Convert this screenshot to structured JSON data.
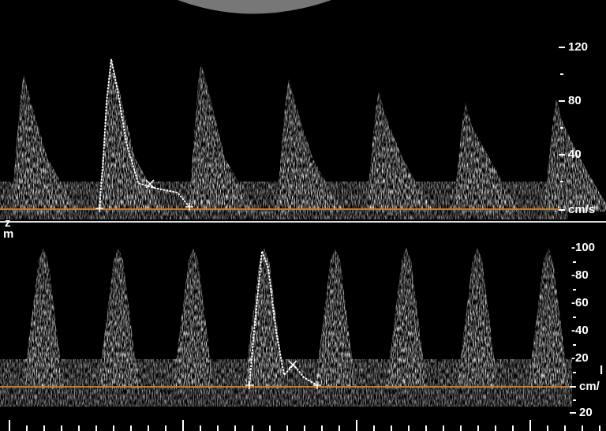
{
  "top_panel": {
    "scale_labels": [
      "120",
      "80",
      "40"
    ],
    "unit": "cm/s"
  },
  "bottom_panel": {
    "scale_labels": [
      "-100",
      "-80",
      "-60",
      "-40",
      "-20"
    ],
    "unit": "cm/",
    "below_label": "20"
  },
  "fragments": [
    "z",
    "m",
    "l"
  ]
}
